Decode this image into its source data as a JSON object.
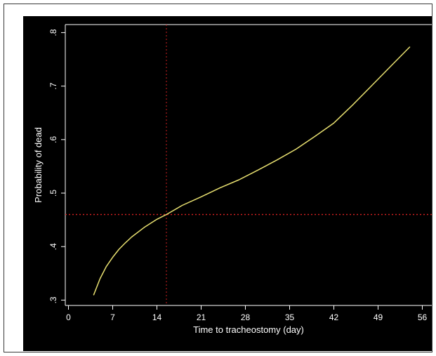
{
  "chart_data": {
    "type": "line",
    "title": "",
    "xlabel": "Time to tracheostomy (day)",
    "ylabel": "Probability of dead",
    "xlim": [
      -0.5,
      57.5
    ],
    "ylim": [
      0.29,
      0.815
    ],
    "x_ticks": [
      0,
      7,
      14,
      21,
      28,
      35,
      42,
      49,
      56
    ],
    "x_tick_labels": [
      "0",
      "7",
      "14",
      "21",
      "28",
      "35",
      "42",
      "49",
      "56"
    ],
    "y_ticks": [
      0.3,
      0.4,
      0.5,
      0.6,
      0.7,
      0.8
    ],
    "y_tick_labels": [
      ".3",
      ".4",
      ".5",
      ".6",
      ".7",
      ".8"
    ],
    "grid": false,
    "legend": "none",
    "background_color": "#000000",
    "axis_color": "#ffffff",
    "series": [
      {
        "color": "#e8e070",
        "x": [
          4,
          5,
          6,
          7,
          8,
          9,
          10,
          12,
          14,
          15.5,
          18,
          21,
          24,
          27,
          30,
          33,
          36,
          39,
          42,
          45,
          48,
          51,
          54
        ],
        "y": [
          0.31,
          0.34,
          0.363,
          0.38,
          0.395,
          0.407,
          0.418,
          0.436,
          0.451,
          0.46,
          0.477,
          0.493,
          0.51,
          0.525,
          0.543,
          0.562,
          0.582,
          0.606,
          0.631,
          0.665,
          0.701,
          0.737,
          0.773
        ]
      }
    ],
    "reference_lines": [
      {
        "orientation": "vertical",
        "value": 15.5,
        "color": "#d02020",
        "style": "dotted"
      },
      {
        "orientation": "horizontal",
        "value": 0.46,
        "color": "#d02020",
        "style": "dotted"
      }
    ]
  }
}
